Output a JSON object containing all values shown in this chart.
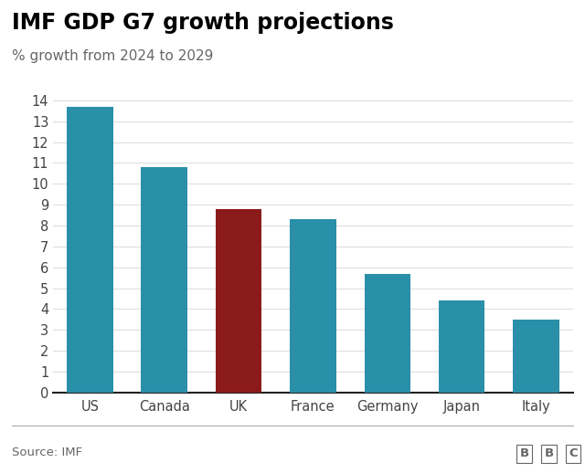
{
  "title": "IMF GDP G7 growth projections",
  "subtitle": "% growth from 2024 to 2029",
  "source": "Source: IMF",
  "categories": [
    "US",
    "Canada",
    "UK",
    "France",
    "Germany",
    "Japan",
    "Italy"
  ],
  "values": [
    13.7,
    10.8,
    8.8,
    8.3,
    5.7,
    4.4,
    3.5
  ],
  "bar_colors": [
    "#2a8fa8",
    "#2a8fa8",
    "#8b1a1a",
    "#2a8fa8",
    "#2a8fa8",
    "#2a8fa8",
    "#2a8fa8"
  ],
  "ylim": [
    0,
    14.5
  ],
  "yticks": [
    0,
    1,
    2,
    3,
    4,
    5,
    6,
    7,
    8,
    9,
    10,
    11,
    12,
    13,
    14
  ],
  "background_color": "#ffffff",
  "title_fontsize": 17,
  "subtitle_fontsize": 11,
  "tick_fontsize": 10.5,
  "source_fontsize": 9.5,
  "title_color": "#000000",
  "subtitle_color": "#666666",
  "tick_color": "#444444",
  "source_color": "#666666",
  "bbc_text": "BBC",
  "bottom_line_color": "#aaaaaa",
  "grid_color": "#dddddd",
  "bottom_spine_color": "#222222"
}
